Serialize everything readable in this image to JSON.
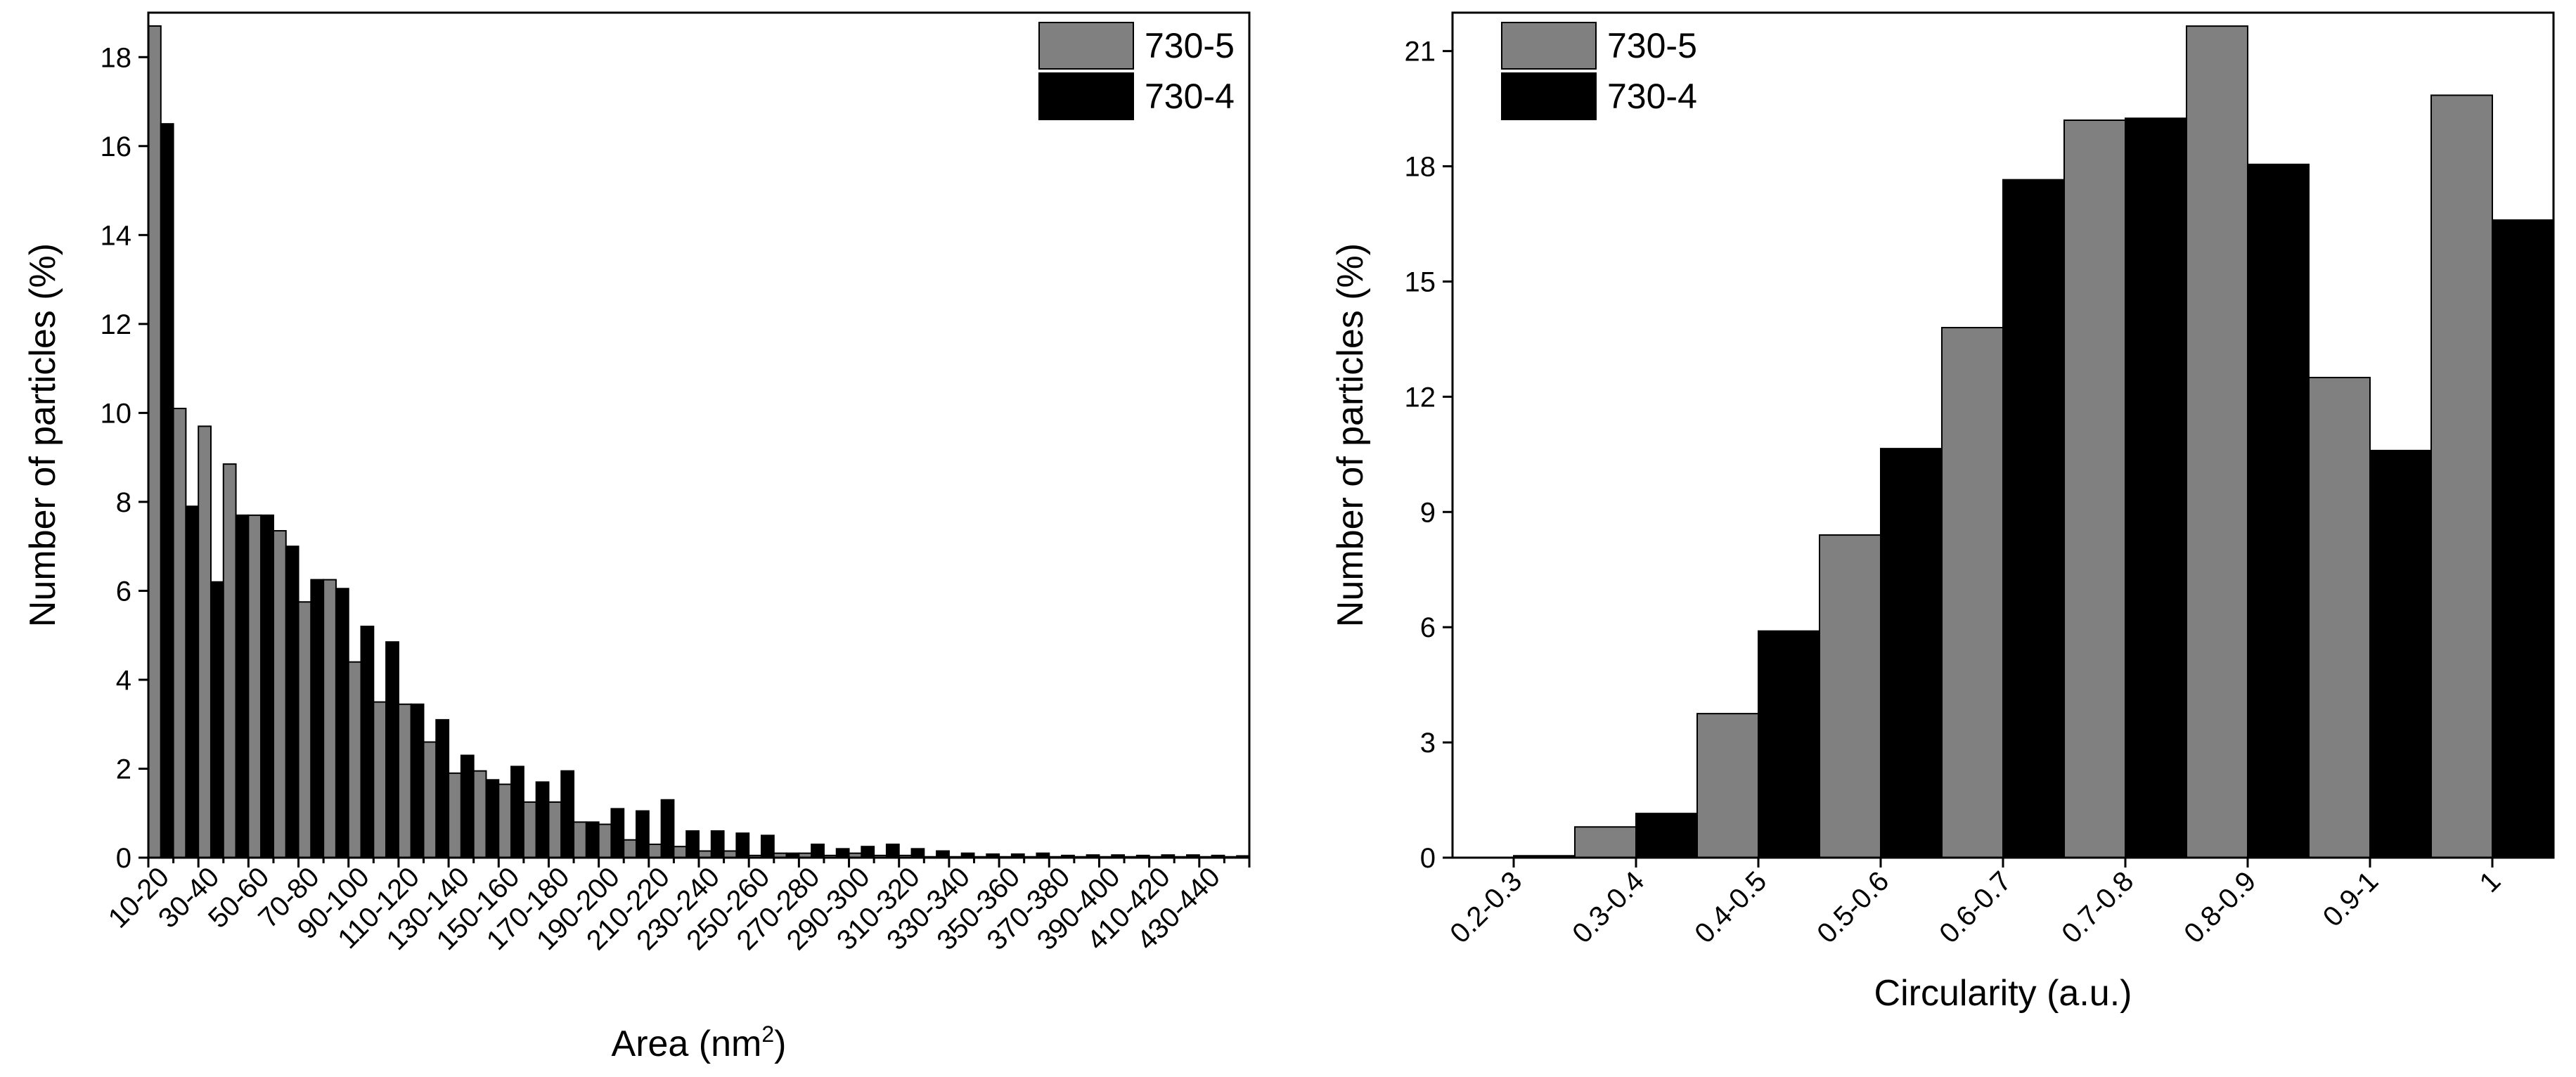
{
  "chart_data": [
    {
      "type": "bar",
      "xlabel": "Area (nm",
      "xlabel_sup": "2",
      "xlabel_suffix": ")",
      "ylabel": "Number of particles (%)",
      "ylim": [
        0,
        19
      ],
      "yticks": [
        0,
        2,
        4,
        6,
        8,
        10,
        12,
        14,
        16,
        18
      ],
      "tick_labels": [
        "10-20",
        "30-40",
        "50-60",
        "70-80",
        "90-100",
        "110-120",
        "130-140",
        "150-160",
        "170-180",
        "190-200",
        "210-220",
        "230-240",
        "250-260",
        "270-280",
        "290-300",
        "310-320",
        "330-340",
        "350-360",
        "370-380",
        "390-400",
        "410-420",
        "430-440"
      ],
      "categories": [
        "10-20",
        "20-30",
        "30-40",
        "40-50",
        "50-60",
        "60-70",
        "70-80",
        "80-90",
        "90-100",
        "100-110",
        "110-120",
        "120-130",
        "130-140",
        "140-150",
        "150-160",
        "160-170",
        "170-180",
        "180-190",
        "190-200",
        "200-210",
        "210-220",
        "220-230",
        "230-240",
        "240-250",
        "250-260",
        "260-270",
        "270-280",
        "280-290",
        "290-300",
        "300-310",
        "310-320",
        "320-330",
        "330-340",
        "340-350",
        "350-360",
        "360-370",
        "370-380",
        "380-390",
        "390-400",
        "400-410",
        "410-420",
        "420-430",
        "430-440",
        "440-450"
      ],
      "series": [
        {
          "name": "730-5",
          "color": "#808080",
          "values": [
            18.7,
            10.1,
            9.7,
            8.85,
            7.7,
            7.35,
            5.75,
            6.25,
            4.4,
            3.5,
            3.45,
            2.6,
            1.9,
            1.95,
            1.65,
            1.25,
            1.25,
            0.8,
            0.75,
            0.4,
            0.3,
            0.25,
            0.15,
            0.15,
            0.05,
            0.1,
            0.1,
            0.05,
            0.1,
            0.05,
            0.05,
            0.02,
            0.02,
            0.02,
            0.02,
            0.02,
            0.02,
            0.02,
            0.02,
            0.02,
            0.02,
            0.02,
            0.02,
            0.02
          ]
        },
        {
          "name": "730-4",
          "color": "#000000",
          "values": [
            16.5,
            7.9,
            6.2,
            7.7,
            7.7,
            7.0,
            6.25,
            6.05,
            5.2,
            4.85,
            3.45,
            3.1,
            2.3,
            1.75,
            2.05,
            1.7,
            1.95,
            0.8,
            1.1,
            1.05,
            1.3,
            0.6,
            0.6,
            0.55,
            0.5,
            0.1,
            0.3,
            0.2,
            0.25,
            0.3,
            0.2,
            0.15,
            0.1,
            0.08,
            0.08,
            0.1,
            0.05,
            0.06,
            0.06,
            0.05,
            0.06,
            0.06,
            0.05,
            0.04
          ]
        }
      ],
      "legend_position": "top-right"
    },
    {
      "type": "bar",
      "xlabel": "Circularity (a.u.)",
      "ylabel": "Number of particles (%)",
      "ylim": [
        0,
        22
      ],
      "yticks": [
        0,
        3,
        6,
        9,
        12,
        15,
        18,
        21
      ],
      "categories": [
        "0.2-0.3",
        "0.3-0.4",
        "0.4-0.5",
        "0.5-0.6",
        "0.6-0.7",
        "0.7-0.8",
        "0.8-0.9",
        "0.9-1",
        "1"
      ],
      "series": [
        {
          "name": "730-5",
          "color": "#808080",
          "values": [
            0.0,
            0.8,
            3.75,
            8.4,
            13.8,
            19.2,
            21.65,
            12.5,
            19.85
          ]
        },
        {
          "name": "730-4",
          "color": "#000000",
          "values": [
            0.05,
            1.15,
            5.9,
            10.65,
            17.65,
            19.25,
            18.05,
            10.6,
            16.6
          ]
        }
      ],
      "legend_position": "top-left"
    }
  ]
}
